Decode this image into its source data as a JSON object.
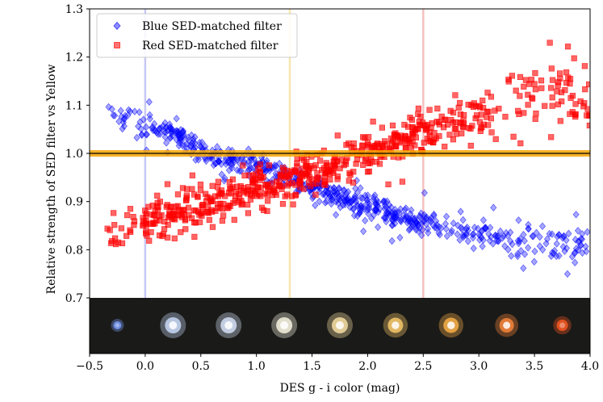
{
  "chart_data": {
    "type": "scatter",
    "title": "",
    "xlabel": "DES g - i color (mag)",
    "ylabel": "Relative strength of SED filter vs Yellow",
    "xlim": [
      -0.5,
      4.0
    ],
    "ylim": [
      0.7,
      1.3
    ],
    "x_ticks": [
      "−0.5",
      "0.0",
      "0.5",
      "1.0",
      "1.5",
      "2.0",
      "2.5",
      "3.0",
      "3.5",
      "4.0"
    ],
    "y_ticks": [
      "0.7",
      "0.8",
      "0.9",
      "1.0",
      "1.1",
      "1.2",
      "1.3"
    ],
    "legend_position": "top-left",
    "reference_line": {
      "y": 1.0,
      "color": "#f5a300"
    },
    "vertical_lines": [
      {
        "x": 0.0,
        "color": "#c8c8f5"
      },
      {
        "x": 1.3,
        "color": "#f7e6b0"
      },
      {
        "x": 2.5,
        "color": "#f5c0c0"
      }
    ],
    "series": [
      {
        "name": "Blue SED-matched filter",
        "marker": "diamond",
        "color": "#0000ff",
        "trend_x": [
          -0.35,
          0.0,
          0.25,
          0.5,
          0.75,
          1.0,
          1.25,
          1.5,
          1.75,
          2.0,
          2.25,
          2.5,
          2.75,
          3.0,
          3.25,
          3.5,
          3.75,
          4.0
        ],
        "trend_y": [
          1.08,
          1.06,
          1.04,
          1.01,
          0.985,
          0.975,
          0.955,
          0.93,
          0.91,
          0.89,
          0.87,
          0.855,
          0.845,
          0.83,
          0.82,
          0.815,
          0.81,
          0.81
        ],
        "scatter_sd": 0.012
      },
      {
        "name": "Red SED-matched filter",
        "marker": "square",
        "color": "#ff0000",
        "trend_x": [
          -0.35,
          0.0,
          0.25,
          0.5,
          0.75,
          1.0,
          1.25,
          1.5,
          1.75,
          2.0,
          2.25,
          2.5,
          2.75,
          3.0,
          3.25,
          3.5,
          3.75,
          4.0
        ],
        "trend_y": [
          0.84,
          0.86,
          0.87,
          0.89,
          0.91,
          0.925,
          0.94,
          0.96,
          0.98,
          1.0,
          1.02,
          1.045,
          1.065,
          1.08,
          1.1,
          1.125,
          1.15,
          1.12
        ],
        "scatter_sd": 0.02
      }
    ],
    "star_strip": {
      "stars": [
        {
          "x": -0.25,
          "color": "#7da1ff",
          "size": 0.5
        },
        {
          "x": 0.25,
          "color": "#cfe0ff",
          "size": 1.0
        },
        {
          "x": 0.75,
          "color": "#dde9ff",
          "size": 1.0
        },
        {
          "x": 1.25,
          "color": "#fffbe8",
          "size": 1.0
        },
        {
          "x": 1.75,
          "color": "#ffe6a8",
          "size": 1.0
        },
        {
          "x": 2.25,
          "color": "#ffcf6e",
          "size": 0.95
        },
        {
          "x": 2.75,
          "color": "#ffb44a",
          "size": 0.95
        },
        {
          "x": 3.25,
          "color": "#ff8a3c",
          "size": 0.9
        },
        {
          "x": 3.75,
          "color": "#ff5a20",
          "size": 0.7
        }
      ]
    }
  }
}
